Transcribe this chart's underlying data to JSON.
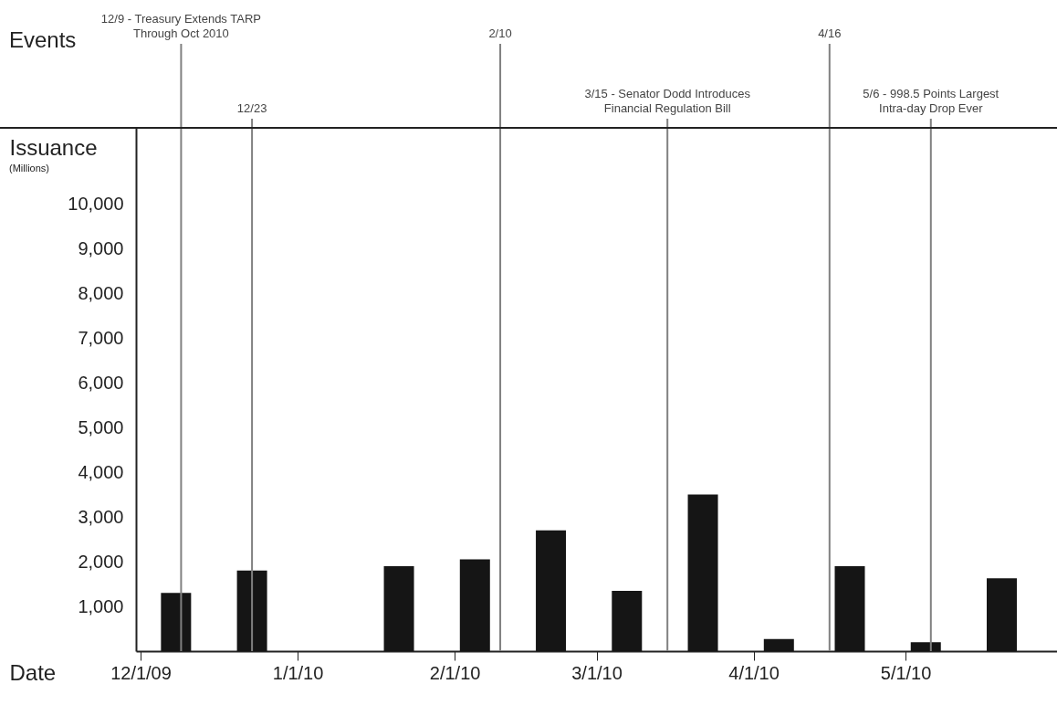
{
  "chart_data": {
    "type": "bar",
    "xlabel": "Date",
    "ylabel": "Issuance",
    "annotations": [
      "Events",
      "(Millions)"
    ],
    "x": [
      "2009-12-08",
      "2009-12-23",
      "2010-01-21",
      "2010-02-05",
      "2010-02-20",
      "2010-03-07",
      "2010-03-22",
      "2010-04-06",
      "2010-04-20",
      "2010-05-05",
      "2010-05-20"
    ],
    "values": [
      1300,
      1800,
      1900,
      2050,
      2700,
      1350,
      3500,
      270,
      1900,
      200,
      1630
    ],
    "color": "#151515",
    "xlim": [
      "2009-12-01",
      "2010-05-30"
    ],
    "xticks": [
      {
        "value": "2009-12-01",
        "label": "12/1/09"
      },
      {
        "value": "2010-01-01",
        "label": "1/1/10"
      },
      {
        "value": "2010-02-01",
        "label": "2/1/10"
      },
      {
        "value": "2010-03-01",
        "label": "3/1/10"
      },
      {
        "value": "2010-04-01",
        "label": "4/1/10"
      },
      {
        "value": "2010-05-01",
        "label": "5/1/10"
      }
    ],
    "ylim": [
      0,
      11700
    ],
    "yticks": [
      {
        "value": 1000,
        "label": "1,000"
      },
      {
        "value": 2000,
        "label": "2,000"
      },
      {
        "value": 3000,
        "label": "3,000"
      },
      {
        "value": 4000,
        "label": "4,000"
      },
      {
        "value": 5000,
        "label": "5,000"
      },
      {
        "value": 6000,
        "label": "6,000"
      },
      {
        "value": 7000,
        "label": "7,000"
      },
      {
        "value": 8000,
        "label": "8,000"
      },
      {
        "value": 9000,
        "label": "9,000"
      },
      {
        "value": 10000,
        "label": "10,000"
      }
    ],
    "ref_lines": [
      {
        "axis": "x",
        "value": "2009-12-09",
        "label": "12/9 - Treasury Extends TARP Through Oct 2010",
        "color": "#808080"
      },
      {
        "axis": "x",
        "value": "2009-12-23",
        "label": "12/23",
        "color": "#808080"
      },
      {
        "axis": "x",
        "value": "2010-02-10",
        "label": "2/10",
        "color": "#808080"
      },
      {
        "axis": "x",
        "value": "2010-03-15",
        "label": "3/15 - Senator Dodd Introduces Financial Regulation Bill",
        "color": "#808080"
      },
      {
        "axis": "x",
        "value": "2010-04-16",
        "label": "4/16",
        "color": "#808080"
      },
      {
        "axis": "x",
        "value": "2010-05-06",
        "label": "5/6 - 998.5 Points Largest Intra-day Drop Ever",
        "color": "#808080"
      }
    ],
    "grid": false
  }
}
